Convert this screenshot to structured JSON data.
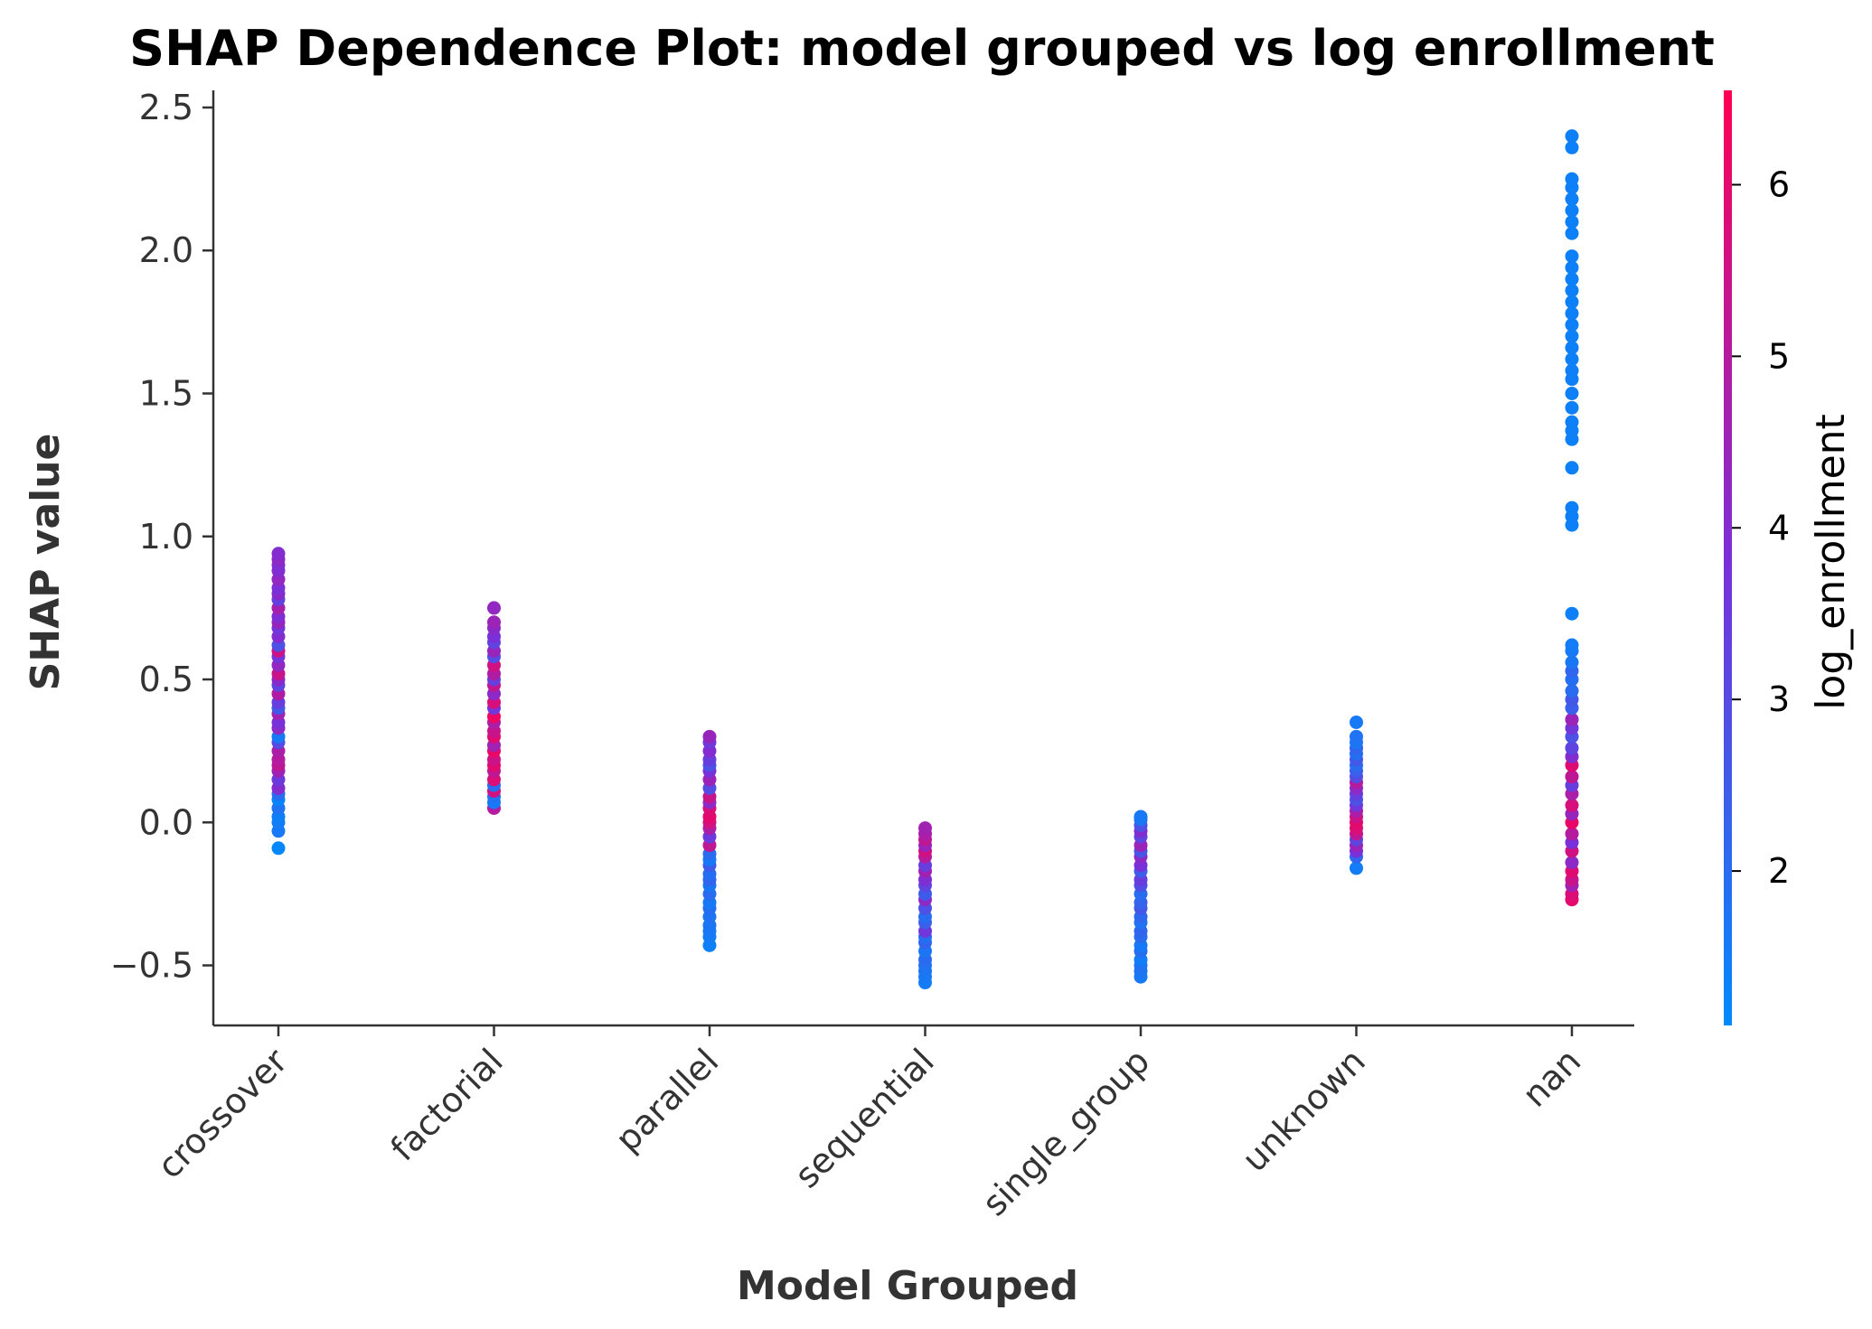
{
  "chart_data": {
    "type": "scatter",
    "title": "SHAP Dependence Plot: model grouped vs log enrollment",
    "xlabel": "Model Grouped",
    "ylabel": "SHAP value",
    "categories": [
      "crossover",
      "factorial",
      "parallel",
      "sequential",
      "single_group",
      "unknown",
      "nan"
    ],
    "ylim": [
      -0.71,
      2.56
    ],
    "yticks": [
      -0.5,
      0.0,
      0.5,
      1.0,
      1.5,
      2.0,
      2.5
    ],
    "ytick_labels": [
      "−0.5",
      "0.0",
      "0.5",
      "1.0",
      "1.5",
      "2.0",
      "2.5"
    ],
    "colorbar": {
      "label": "log_enrollment",
      "range": [
        1.1,
        6.55
      ],
      "ticks": [
        2,
        3,
        4,
        5,
        6
      ],
      "tick_labels": [
        "2",
        "3",
        "4",
        "5",
        "6"
      ],
      "color_low": "#008afb",
      "color_mid": "#7b2fd8",
      "color_high": "#ff0052"
    },
    "grid": false,
    "points": [
      {
        "category": "crossover",
        "y": [
          -0.09,
          -0.03,
          0.0,
          0.02,
          0.05,
          0.08,
          0.1,
          0.12,
          0.15,
          0.18,
          0.2,
          0.22,
          0.25,
          0.28,
          0.3,
          0.33,
          0.35,
          0.38,
          0.4,
          0.42,
          0.45,
          0.48,
          0.5,
          0.52,
          0.55,
          0.58,
          0.6,
          0.62,
          0.65,
          0.68,
          0.7,
          0.72,
          0.75,
          0.78,
          0.8,
          0.82,
          0.85,
          0.88,
          0.9,
          0.92,
          0.94
        ],
        "c": [
          1.2,
          1.6,
          1.5,
          1.4,
          1.8,
          1.3,
          2.0,
          4.0,
          3.5,
          4.5,
          5.2,
          5.0,
          4.8,
          3.0,
          1.6,
          4.2,
          3.8,
          4.6,
          2.6,
          3.4,
          4.9,
          3.2,
          4.1,
          5.4,
          4.3,
          3.7,
          5.5,
          2.8,
          4.0,
          3.6,
          4.4,
          3.9,
          4.7,
          3.3,
          4.1,
          3.8,
          4.3,
          4.0,
          3.9,
          4.2,
          4.0
        ]
      },
      {
        "category": "factorial",
        "y": [
          0.05,
          0.07,
          0.09,
          0.11,
          0.13,
          0.15,
          0.18,
          0.2,
          0.22,
          0.25,
          0.27,
          0.3,
          0.32,
          0.35,
          0.37,
          0.4,
          0.42,
          0.45,
          0.48,
          0.5,
          0.52,
          0.55,
          0.58,
          0.6,
          0.63,
          0.65,
          0.68,
          0.7,
          0.75
        ],
        "c": [
          5.0,
          1.6,
          1.8,
          5.6,
          2.0,
          5.8,
          5.2,
          6.0,
          5.5,
          6.1,
          4.6,
          5.9,
          5.4,
          4.8,
          6.2,
          3.6,
          5.7,
          4.2,
          5.3,
          3.4,
          4.9,
          5.6,
          3.0,
          4.4,
          3.2,
          3.8,
          4.1,
          4.5,
          4.3
        ]
      },
      {
        "category": "parallel",
        "y": [
          -0.43,
          -0.4,
          -0.38,
          -0.36,
          -0.33,
          -0.3,
          -0.28,
          -0.25,
          -0.22,
          -0.2,
          -0.18,
          -0.15,
          -0.13,
          -0.11,
          -0.08,
          -0.05,
          -0.02,
          0.0,
          0.02,
          0.05,
          0.07,
          0.09,
          0.12,
          0.15,
          0.18,
          0.2,
          0.22,
          0.25,
          0.28,
          0.3
        ],
        "c": [
          1.4,
          1.5,
          1.6,
          1.7,
          1.8,
          1.9,
          1.6,
          2.0,
          1.7,
          2.2,
          1.9,
          2.5,
          1.6,
          2.0,
          5.2,
          3.5,
          4.8,
          5.6,
          6.0,
          5.8,
          4.2,
          5.4,
          3.0,
          4.5,
          3.8,
          2.8,
          3.4,
          4.0,
          3.6,
          4.4
        ]
      },
      {
        "category": "sequential",
        "y": [
          -0.56,
          -0.54,
          -0.52,
          -0.5,
          -0.48,
          -0.45,
          -0.42,
          -0.4,
          -0.38,
          -0.35,
          -0.33,
          -0.3,
          -0.27,
          -0.25,
          -0.22,
          -0.2,
          -0.17,
          -0.15,
          -0.12,
          -0.1,
          -0.08,
          -0.06,
          -0.04,
          -0.02
        ],
        "c": [
          1.5,
          1.6,
          1.7,
          1.8,
          2.0,
          1.7,
          2.2,
          1.9,
          3.6,
          2.4,
          2.0,
          2.8,
          4.2,
          2.5,
          3.2,
          3.9,
          4.6,
          3.4,
          5.0,
          5.6,
          4.4,
          5.2,
          4.8,
          4.6
        ]
      },
      {
        "category": "single_group",
        "y": [
          -0.54,
          -0.52,
          -0.5,
          -0.48,
          -0.45,
          -0.43,
          -0.4,
          -0.38,
          -0.35,
          -0.33,
          -0.3,
          -0.28,
          -0.25,
          -0.22,
          -0.2,
          -0.17,
          -0.15,
          -0.12,
          -0.1,
          -0.08,
          -0.05,
          -0.03,
          -0.01,
          0.01,
          0.02
        ],
        "c": [
          1.6,
          1.7,
          1.8,
          1.5,
          1.9,
          1.6,
          2.0,
          2.2,
          1.8,
          2.1,
          2.6,
          2.3,
          2.0,
          2.9,
          3.4,
          2.5,
          3.8,
          4.2,
          2.7,
          4.5,
          3.2,
          4.0,
          2.8,
          1.8,
          1.6
        ]
      },
      {
        "category": "unknown",
        "y": [
          -0.16,
          -0.12,
          -0.1,
          -0.08,
          -0.06,
          -0.04,
          -0.02,
          0.0,
          0.02,
          0.04,
          0.06,
          0.08,
          0.1,
          0.12,
          0.14,
          0.16,
          0.18,
          0.2,
          0.22,
          0.24,
          0.26,
          0.28,
          0.3,
          0.35
        ],
        "c": [
          1.5,
          2.2,
          3.8,
          4.5,
          3.2,
          5.2,
          5.8,
          6.0,
          5.5,
          4.8,
          3.6,
          2.8,
          3.4,
          4.2,
          5.0,
          3.0,
          2.4,
          2.0,
          2.6,
          1.9,
          2.2,
          1.7,
          1.8,
          1.6
        ]
      },
      {
        "category": "nan",
        "y": [
          -0.27,
          -0.25,
          -0.22,
          -0.2,
          -0.17,
          -0.14,
          -0.1,
          -0.07,
          -0.04,
          0.0,
          0.03,
          0.06,
          0.1,
          0.13,
          0.16,
          0.2,
          0.23,
          0.26,
          0.3,
          0.33,
          0.36,
          0.4,
          0.43,
          0.46,
          0.5,
          0.53,
          0.56,
          0.6,
          0.62,
          0.73,
          1.04,
          1.07,
          1.1,
          1.24,
          1.34,
          1.37,
          1.4,
          1.45,
          1.5,
          1.55,
          1.58,
          1.62,
          1.66,
          1.7,
          1.74,
          1.78,
          1.82,
          1.86,
          1.9,
          1.94,
          1.98,
          2.06,
          2.1,
          2.14,
          2.18,
          2.22,
          2.25,
          2.36,
          2.4
        ],
        "c": [
          6.0,
          5.8,
          4.6,
          5.4,
          5.9,
          4.2,
          5.6,
          3.8,
          5.0,
          6.1,
          4.4,
          5.7,
          4.8,
          3.4,
          5.2,
          5.9,
          4.0,
          3.2,
          2.8,
          3.6,
          4.5,
          2.4,
          2.6,
          2.0,
          1.9,
          2.2,
          1.7,
          1.6,
          1.5,
          1.4,
          1.4,
          1.4,
          1.4,
          1.4,
          1.4,
          1.4,
          1.4,
          1.4,
          1.4,
          1.4,
          1.4,
          1.4,
          1.4,
          1.4,
          1.4,
          1.4,
          1.4,
          1.4,
          1.4,
          1.4,
          1.4,
          1.4,
          1.4,
          1.4,
          1.4,
          1.4,
          1.4,
          1.4,
          1.4
        ]
      }
    ]
  }
}
